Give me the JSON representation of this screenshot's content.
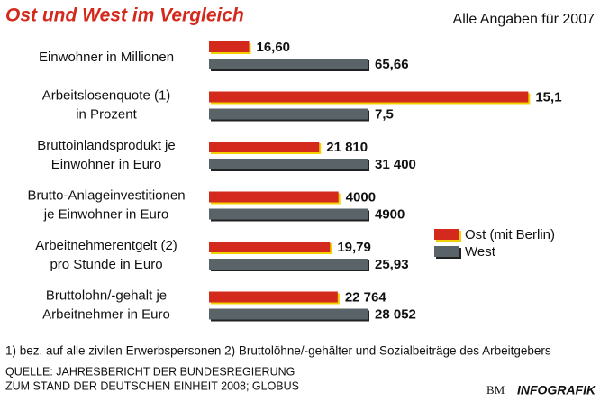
{
  "chart_data": {
    "type": "bar",
    "orientation": "horizontal",
    "title": "Ost und West im Vergleich",
    "subtitle": "Alle Angaben für 2007",
    "categories": [
      [
        "Einwohner in Millionen"
      ],
      [
        "Arbeitslosenquote (1)",
        "in Prozent"
      ],
      [
        "Bruttoinlandsprodukt je",
        "Einwohner in Euro"
      ],
      [
        "Brutto-Anlageinvestitionen",
        "je Einwohner in Euro"
      ],
      [
        "Arbeitnehmerentgelt (2)",
        "pro Stunde in Euro"
      ],
      [
        "Bruttolohn/-gehalt je",
        "Arbeitnehmer in Euro"
      ]
    ],
    "series": [
      {
        "name": "Ost (mit Berlin)",
        "color": "#d42a1e",
        "values": [
          16.6,
          15.1,
          21810,
          4000,
          19.79,
          22764
        ],
        "value_labels": [
          "16,60",
          "15,1",
          "21 810",
          "4000",
          "19,79",
          "22 764"
        ]
      },
      {
        "name": "West",
        "color": "#5a6468",
        "values": [
          65.66,
          7.5,
          31400,
          4900,
          25.93,
          28052
        ],
        "value_labels": [
          "65,66",
          "7,5",
          "31 400",
          "4900",
          "25,93",
          "28 052"
        ]
      }
    ],
    "footnote": "1) bez. auf alle zivilen Erwerbspersonen 2) Bruttolöhne/-gehälter und Sozialbeiträge des Arbeitgebers",
    "source": [
      "QUELLE: JAHRESBERICHT DER BUNDESREGIERUNG",
      "ZUM STAND DER DEUTSCHEN EINHEIT 2008; GLOBUS"
    ],
    "logo": [
      "BM",
      "INFOGRAFIK"
    ]
  }
}
